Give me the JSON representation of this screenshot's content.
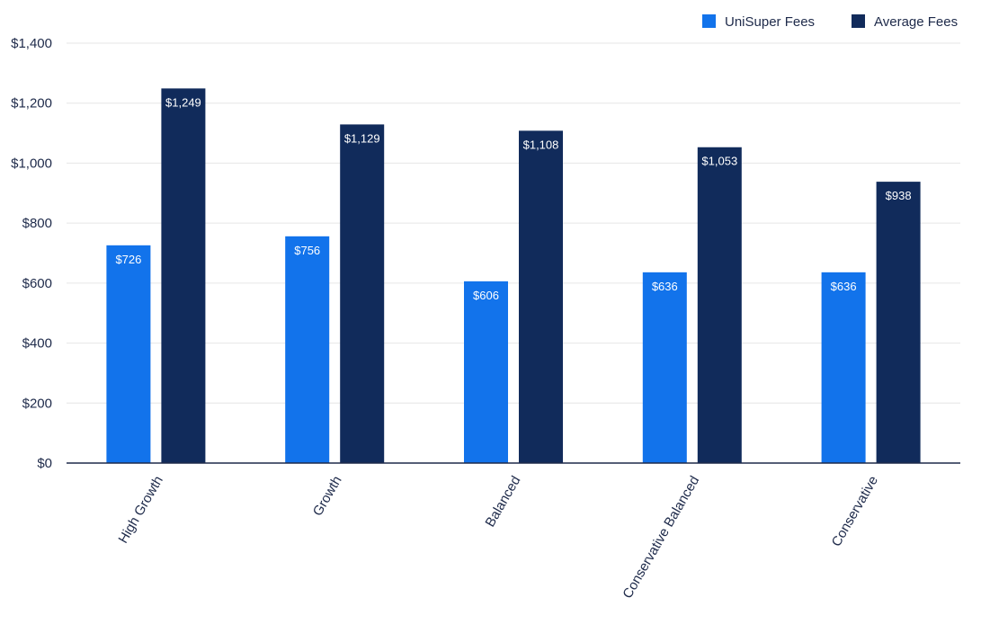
{
  "chart_data": {
    "type": "bar",
    "title": "",
    "xlabel": "",
    "ylabel": "",
    "categories": [
      "High Growth",
      "Growth",
      "Balanced",
      "Conservative Balanced",
      "Conservative"
    ],
    "series": [
      {
        "name": "UniSuper Fees",
        "color": "#1273eb",
        "values": [
          726,
          756,
          606,
          636,
          636
        ],
        "labels": [
          "$726",
          "$756",
          "$606",
          "$636",
          "$636"
        ]
      },
      {
        "name": "Average Fees",
        "color": "#112b5b",
        "values": [
          1249,
          1129,
          1108,
          1053,
          938
        ],
        "labels": [
          "$1,249",
          "$1,129",
          "$1,108",
          "$1,053",
          "$938"
        ]
      }
    ],
    "ylim": [
      0,
      1400
    ],
    "yticks": [
      0,
      200,
      400,
      600,
      800,
      1000,
      1200,
      1400
    ],
    "ytick_labels": [
      "$0",
      "$200",
      "$400",
      "$600",
      "$800",
      "$1,000",
      "$1,200",
      "$1,400"
    ],
    "grid": true,
    "legend_position": "top-right"
  }
}
